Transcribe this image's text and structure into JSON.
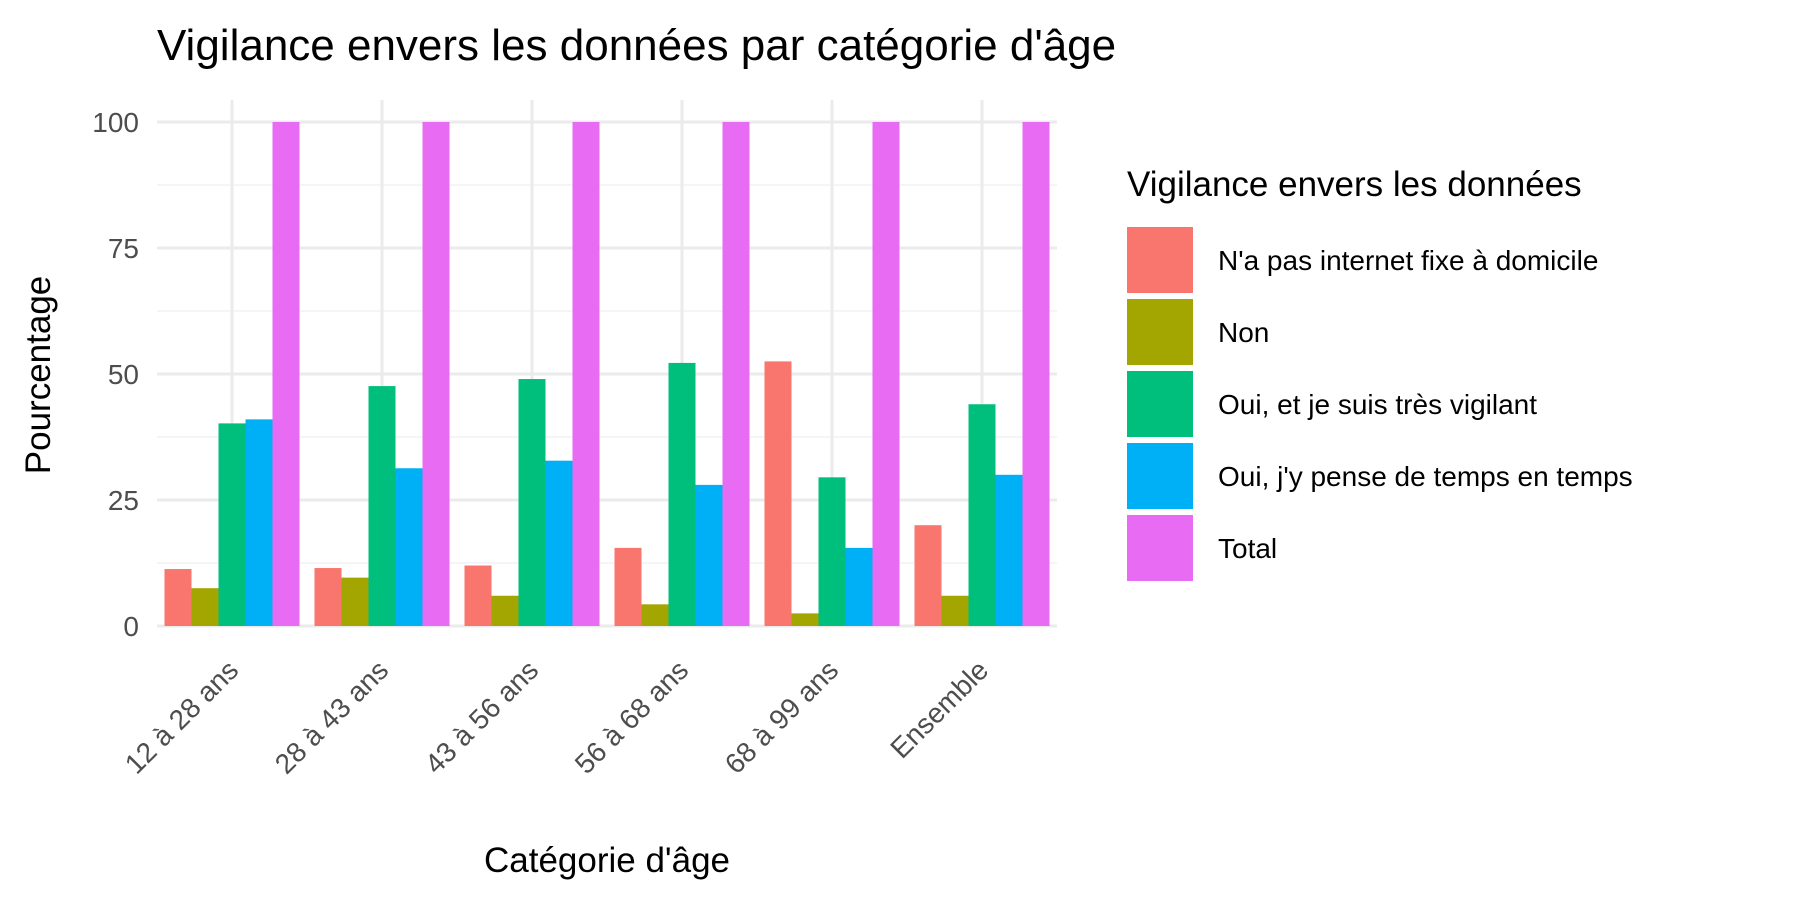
{
  "chart_data": {
    "type": "bar",
    "title": "Vigilance envers les données par catégorie d'âge",
    "xlabel": "Catégorie d'âge",
    "ylabel": "Pourcentage",
    "ylim": [
      0,
      100
    ],
    "yticks": [
      0,
      25,
      50,
      75,
      100
    ],
    "grid": true,
    "legend": {
      "title": "Vigilance envers les données",
      "position": "right"
    },
    "categories": [
      "12 à 28 ans",
      "28 à 43 ans",
      "43 à 56 ans",
      "56 à 68 ans",
      "68 à 99 ans",
      "Ensemble"
    ],
    "series": [
      {
        "name": "N'a pas internet fixe à domicile",
        "color": "#F8766D",
        "values": [
          11.3,
          11.5,
          12.0,
          15.5,
          52.5,
          20.0
        ]
      },
      {
        "name": "Non",
        "color": "#A3A500",
        "values": [
          7.5,
          9.6,
          6.0,
          4.3,
          2.5,
          6.0
        ]
      },
      {
        "name": "Oui, et je suis très vigilant",
        "color": "#00BF7D",
        "values": [
          40.2,
          47.6,
          49.0,
          52.2,
          29.5,
          44.0
        ]
      },
      {
        "name": "Oui, j'y pense de temps en temps",
        "color": "#00B0F6",
        "values": [
          41.0,
          31.3,
          32.8,
          28.0,
          15.5,
          30.0
        ]
      },
      {
        "name": "Total",
        "color": "#E76BF3",
        "values": [
          100,
          100,
          100,
          100,
          100,
          100
        ]
      }
    ]
  }
}
